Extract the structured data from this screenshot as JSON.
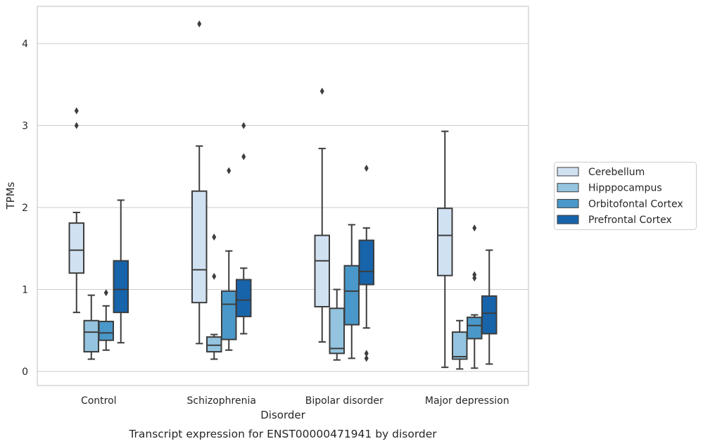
{
  "chart_data": {
    "type": "box",
    "caption": "Transcript expression for ENST00000471941 by disorder",
    "xlabel": "Disorder",
    "ylabel": "TPMs",
    "ylim": [
      -0.17,
      4.45
    ],
    "yticks": [
      0,
      1,
      2,
      3,
      4
    ],
    "grid": "horizontal",
    "legend_position": "right",
    "categories": [
      "Control",
      "Schizophrenia",
      "Bipolar disorder",
      "Major depression"
    ],
    "series": [
      {
        "name": "Cerebellum",
        "color": "#d0e1f2",
        "boxes": [
          {
            "whislo": 0.72,
            "q1": 1.2,
            "med": 1.48,
            "q3": 1.81,
            "whishi": 1.94,
            "fliers": [
              3.0,
              3.18
            ]
          },
          {
            "whislo": 0.34,
            "q1": 0.84,
            "med": 1.24,
            "q3": 2.2,
            "whishi": 2.75,
            "fliers": [
              4.24
            ]
          },
          {
            "whislo": 0.36,
            "q1": 0.79,
            "med": 1.35,
            "q3": 1.66,
            "whishi": 2.72,
            "fliers": [
              3.42
            ]
          },
          {
            "whislo": 0.05,
            "q1": 1.17,
            "med": 1.66,
            "q3": 1.99,
            "whishi": 2.93,
            "fliers": []
          }
        ]
      },
      {
        "name": "Hipppocampus",
        "color": "#94c4df",
        "boxes": [
          {
            "whislo": 0.15,
            "q1": 0.24,
            "med": 0.48,
            "q3": 0.62,
            "whishi": 0.93,
            "fliers": []
          },
          {
            "whislo": 0.15,
            "q1": 0.24,
            "med": 0.32,
            "q3": 0.42,
            "whishi": 0.45,
            "fliers": [
              1.16,
              1.64
            ]
          },
          {
            "whislo": 0.14,
            "q1": 0.22,
            "med": 0.28,
            "q3": 0.77,
            "whishi": 1.0,
            "fliers": []
          },
          {
            "whislo": 0.03,
            "q1": 0.15,
            "med": 0.18,
            "q3": 0.48,
            "whishi": 0.62,
            "fliers": []
          }
        ]
      },
      {
        "name": "Orbitofontal Cortex",
        "color": "#4a98c9",
        "boxes": [
          {
            "whislo": 0.26,
            "q1": 0.38,
            "med": 0.47,
            "q3": 0.61,
            "whishi": 0.8,
            "fliers": [
              0.96
            ]
          },
          {
            "whislo": 0.26,
            "q1": 0.39,
            "med": 0.82,
            "q3": 0.98,
            "whishi": 1.47,
            "fliers": [
              2.45
            ]
          },
          {
            "whislo": 0.16,
            "q1": 0.57,
            "med": 0.98,
            "q3": 1.29,
            "whishi": 1.79,
            "fliers": []
          },
          {
            "whislo": 0.04,
            "q1": 0.4,
            "med": 0.56,
            "q3": 0.66,
            "whishi": 0.69,
            "fliers": [
              1.14,
              1.18,
              1.75
            ]
          }
        ]
      },
      {
        "name": "Prefrontal Cortex",
        "color": "#1764ab",
        "boxes": [
          {
            "whislo": 0.35,
            "q1": 0.72,
            "med": 1.0,
            "q3": 1.35,
            "whishi": 2.09,
            "fliers": []
          },
          {
            "whislo": 0.46,
            "q1": 0.67,
            "med": 0.87,
            "q3": 1.12,
            "whishi": 1.26,
            "fliers": [
              2.62,
              3.0
            ]
          },
          {
            "whislo": 0.53,
            "q1": 1.06,
            "med": 1.22,
            "q3": 1.6,
            "whishi": 1.75,
            "fliers": [
              0.16,
              0.22,
              2.48
            ]
          },
          {
            "whislo": 0.09,
            "q1": 0.46,
            "med": 0.71,
            "q3": 0.92,
            "whishi": 1.48,
            "fliers": []
          }
        ]
      }
    ]
  }
}
